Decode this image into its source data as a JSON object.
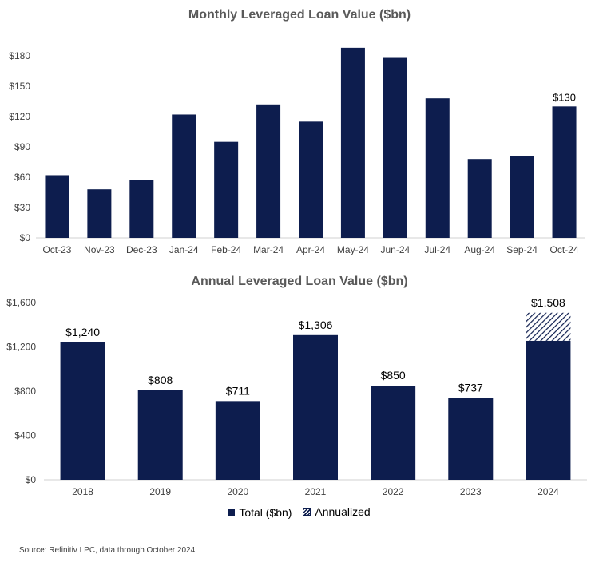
{
  "chart_data": [
    {
      "type": "bar",
      "title": "Monthly Leveraged Loan Value ($bn)",
      "categories": [
        "Oct-23",
        "Nov-23",
        "Dec-23",
        "Jan-24",
        "Feb-24",
        "Mar-24",
        "Apr-24",
        "May-24",
        "Jun-24",
        "Jul-24",
        "Aug-24",
        "Sep-24",
        "Oct-24"
      ],
      "values": [
        62,
        48,
        57,
        122,
        95,
        132,
        115,
        188,
        178,
        138,
        78,
        81,
        130
      ],
      "ylim": [
        0,
        180
      ],
      "yticks": [
        "$0",
        "$30",
        "$60",
        "$90",
        "$120",
        "$150",
        "$180"
      ],
      "data_labels": [
        {
          "index": 12,
          "text": "$130"
        }
      ],
      "color": "#0d1d4e"
    },
    {
      "type": "bar",
      "title": "Annual Leveraged Loan Value ($bn)",
      "categories": [
        "2018",
        "2019",
        "2020",
        "2021",
        "2022",
        "2023",
        "2024"
      ],
      "series": [
        {
          "name": "Total ($bn)",
          "values": [
            1240,
            808,
            711,
            1306,
            850,
            737,
            1255
          ]
        },
        {
          "name": "Annualized",
          "values": [
            0,
            0,
            0,
            0,
            0,
            0,
            253
          ]
        }
      ],
      "data_labels": [
        "$1,240",
        "$808",
        "$711",
        "$1,306",
        "$850",
        "$737",
        "$1,508"
      ],
      "ylim": [
        0,
        1600
      ],
      "yticks": [
        "$0",
        "$400",
        "$800",
        "$1,200",
        "$1,600"
      ],
      "color": "#0d1d4e"
    }
  ],
  "legend": {
    "total_label": "Total ($bn)",
    "annualized_label": "Annualized"
  },
  "source": "Source: Refinitiv LPC, data through October 2024"
}
